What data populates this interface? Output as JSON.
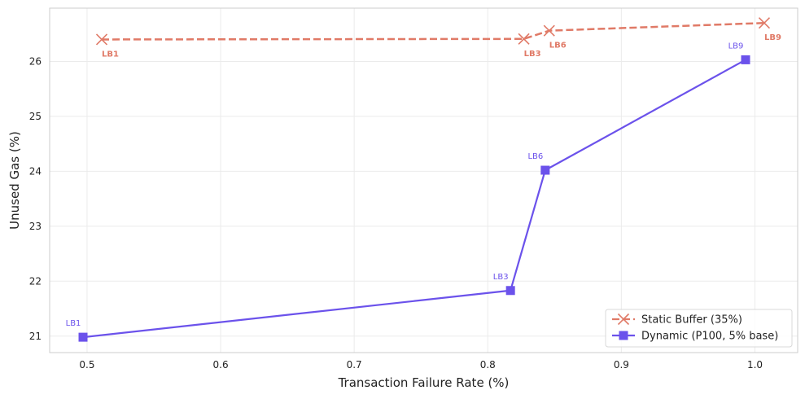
{
  "chart_data": {
    "type": "line",
    "title": "",
    "xlabel": "Transaction Failure Rate (%)",
    "ylabel": "Unused Gas (%)",
    "xlim": [
      0.472,
      1.032
    ],
    "ylim": [
      20.7,
      26.97
    ],
    "xticks": [
      0.5,
      0.6,
      0.7,
      0.8,
      0.9,
      1.0
    ],
    "xtick_labels": [
      "0.5",
      "0.6",
      "0.7",
      "0.8",
      "0.9",
      "1.0"
    ],
    "yticks": [
      21,
      22,
      23,
      24,
      25,
      26
    ],
    "ytick_labels": [
      "21",
      "22",
      "23",
      "24",
      "25",
      "26"
    ],
    "grid": true,
    "legend_position": "bottom-right",
    "series": [
      {
        "name": "Static Buffer (35%)",
        "color": "#E07A67",
        "line_style": "dashed",
        "marker": "x",
        "points": [
          {
            "x": 0.511,
            "y": 26.4,
            "label": "LB1"
          },
          {
            "x": 0.827,
            "y": 26.41,
            "label": "LB3"
          },
          {
            "x": 0.846,
            "y": 26.56,
            "label": "LB6"
          },
          {
            "x": 1.007,
            "y": 26.7,
            "label": "LB9"
          }
        ]
      },
      {
        "name": "Dynamic (P100, 5% base)",
        "color": "#6B52EB",
        "line_style": "solid",
        "marker": "square",
        "points": [
          {
            "x": 0.497,
            "y": 20.98,
            "label": "LB1"
          },
          {
            "x": 0.817,
            "y": 21.83,
            "label": "LB3"
          },
          {
            "x": 0.843,
            "y": 24.02,
            "label": "LB6"
          },
          {
            "x": 0.993,
            "y": 26.03,
            "label": "LB9"
          }
        ]
      }
    ]
  }
}
